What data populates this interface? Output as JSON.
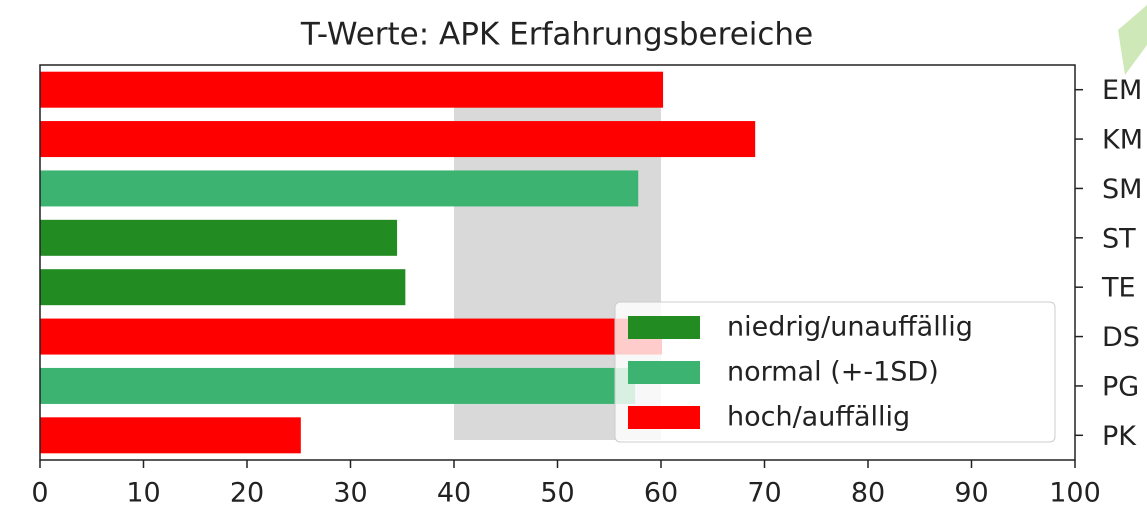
{
  "chart_data": {
    "type": "barh",
    "title": "T-Werte: APK Erfahrungsbereiche",
    "categories": [
      "EM",
      "KM",
      "SM",
      "ST",
      "TE",
      "DS",
      "PG",
      "PK"
    ],
    "series": [
      {
        "name": "niedrig/unauffällig",
        "color": "#228b22",
        "values": [
          null,
          null,
          null,
          34.5,
          35.3,
          null,
          null,
          null
        ]
      },
      {
        "name": "normal (+-1SD)",
        "color": "#3cb371",
        "values": [
          null,
          null,
          57.8,
          null,
          null,
          null,
          57.5,
          null
        ]
      },
      {
        "name": "hoch/auffällig",
        "color": "#ff0000",
        "values": [
          60.2,
          69.1,
          null,
          null,
          null,
          60.1,
          null,
          25.2
        ]
      }
    ],
    "reference_band": [
      40,
      60
    ],
    "band_color": "#d9d9d9",
    "xlim": [
      0,
      100
    ],
    "xticks": [
      0,
      10,
      20,
      30,
      40,
      50,
      60,
      70,
      80,
      90,
      100
    ],
    "legend": "lower right"
  }
}
